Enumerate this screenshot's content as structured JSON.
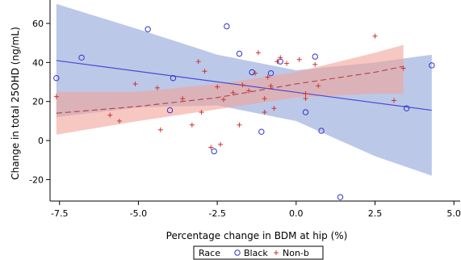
{
  "chart_data": {
    "type": "scatter",
    "title": "",
    "xlabel": "Percentage change in BDM at hip (%)",
    "ylabel": "Change in total 25OHD (ng/mL)",
    "xlim": [
      -7.8,
      5.2
    ],
    "ylim": [
      -31,
      72
    ],
    "xticks": [
      -7.5,
      -5.0,
      -2.5,
      0.0,
      2.5,
      5.0
    ],
    "xtick_labels": [
      "-7.5",
      "-5.0",
      "-2.5",
      "0.0",
      "2.5",
      "5.0"
    ],
    "yticks": [
      -20,
      0,
      20,
      40,
      60
    ],
    "ytick_labels": [
      "-20",
      "0",
      "20",
      "40",
      "60"
    ],
    "grid": false,
    "legend": {
      "title": "Race",
      "placement": "bottom",
      "entries": [
        "Black",
        "Non-b"
      ]
    },
    "series": [
      {
        "name": "Black",
        "marker": "circle",
        "color": "#3333cc",
        "points": [
          [
            -7.6,
            32
          ],
          [
            -6.8,
            42.5
          ],
          [
            -4.7,
            57
          ],
          [
            -3.9,
            32
          ],
          [
            -4.0,
            15.5
          ],
          [
            -2.6,
            -5.5
          ],
          [
            -2.2,
            58.5
          ],
          [
            -1.8,
            44.5
          ],
          [
            -1.4,
            35
          ],
          [
            -1.1,
            4.5
          ],
          [
            -0.8,
            34.5
          ],
          [
            -0.5,
            40.5
          ],
          [
            0.3,
            14.5
          ],
          [
            0.6,
            43
          ],
          [
            0.8,
            5
          ],
          [
            1.4,
            -29
          ],
          [
            3.5,
            16.5
          ],
          [
            4.3,
            38.5
          ]
        ],
        "fit_line": [
          [
            -7.6,
            41
          ],
          [
            4.3,
            15.5
          ]
        ],
        "ci_band_upper": [
          [
            -7.6,
            70
          ],
          [
            -5.0,
            57
          ],
          [
            -2.5,
            44
          ],
          [
            0.0,
            36
          ],
          [
            2.5,
            40
          ],
          [
            4.3,
            44
          ]
        ],
        "ci_band_lower": [
          [
            -7.6,
            12
          ],
          [
            -5.0,
            17
          ],
          [
            -2.5,
            18
          ],
          [
            0.0,
            10
          ],
          [
            2.5,
            -8
          ],
          [
            4.3,
            -18
          ]
        ]
      },
      {
        "name": "Non-b",
        "marker": "plus",
        "color": "#cc3333",
        "points": [
          [
            -7.6,
            22.5
          ],
          [
            -5.9,
            13
          ],
          [
            -5.6,
            10
          ],
          [
            -5.1,
            29
          ],
          [
            -4.4,
            27
          ],
          [
            -4.3,
            5.5
          ],
          [
            -3.6,
            21.5
          ],
          [
            -3.3,
            8
          ],
          [
            -3.1,
            40.5
          ],
          [
            -3.0,
            14.5
          ],
          [
            -2.9,
            35.5
          ],
          [
            -2.7,
            -3.5
          ],
          [
            -2.5,
            27.5
          ],
          [
            -2.4,
            -2
          ],
          [
            -2.3,
            21
          ],
          [
            -2.0,
            24.5
          ],
          [
            -1.8,
            8
          ],
          [
            -1.7,
            28.5
          ],
          [
            -1.5,
            25.5
          ],
          [
            -1.3,
            34.5
          ],
          [
            -1.2,
            45
          ],
          [
            -1.0,
            21.5
          ],
          [
            -1.0,
            14.5
          ],
          [
            -0.9,
            32.5
          ],
          [
            -0.8,
            28
          ],
          [
            -0.7,
            16.5
          ],
          [
            -0.6,
            40.5
          ],
          [
            -0.5,
            42.5
          ],
          [
            -0.3,
            39.5
          ],
          [
            0.1,
            41.5
          ],
          [
            0.3,
            24
          ],
          [
            0.3,
            21.5
          ],
          [
            0.6,
            39
          ],
          [
            0.7,
            28
          ],
          [
            2.5,
            53.5
          ],
          [
            3.1,
            20.5
          ],
          [
            3.4,
            37
          ]
        ],
        "fit_line": [
          [
            -7.6,
            14
          ],
          [
            -5.0,
            17.5
          ],
          [
            -2.5,
            22
          ],
          [
            0.0,
            29
          ],
          [
            2.5,
            35
          ],
          [
            3.4,
            38
          ]
        ],
        "ci_band_upper": [
          [
            -7.6,
            25
          ],
          [
            -5.0,
            25
          ],
          [
            -2.5,
            29
          ],
          [
            0.0,
            35
          ],
          [
            2.5,
            45
          ],
          [
            3.4,
            49
          ]
        ],
        "ci_band_lower": [
          [
            -7.6,
            3
          ],
          [
            -5.0,
            10
          ],
          [
            -2.5,
            16
          ],
          [
            0.0,
            22
          ],
          [
            2.5,
            24
          ],
          [
            3.4,
            24
          ]
        ]
      }
    ]
  },
  "colors": {
    "black_band": "#8fa3d9",
    "nonb_band": "#f2a49a",
    "black_line": "#4a4ad6",
    "nonb_line": "#b04a4a"
  }
}
